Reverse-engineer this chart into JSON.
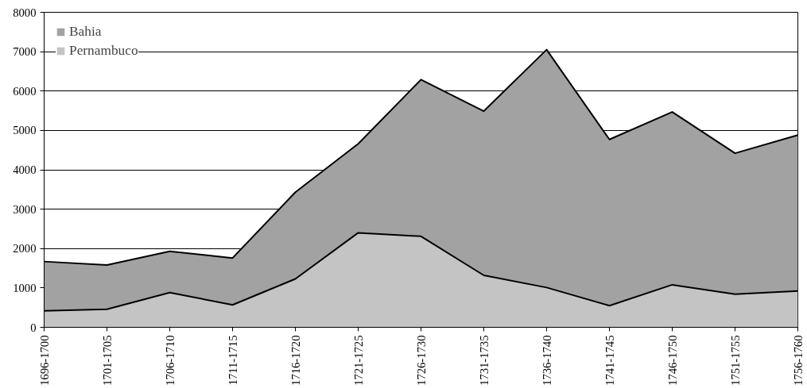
{
  "chart_data": {
    "type": "area",
    "stacked": true,
    "categories": [
      "1696-1700",
      "1701-1705",
      "1706-1710",
      "1711-1715",
      "1716-1720",
      "1721-1725",
      "1726-1730",
      "1731-1735",
      "1736-1740",
      "1741-1745",
      "1746-1750",
      "1751-1755",
      "1756-1760"
    ],
    "series": [
      {
        "name": "Pernambuco",
        "color": "#c4c4c4",
        "values": [
          420,
          460,
          880,
          570,
          1230,
          2400,
          2310,
          1320,
          1010,
          550,
          1080,
          840,
          920
        ]
      },
      {
        "name": "Bahia",
        "color": "#a2a2a2",
        "values": [
          1250,
          1120,
          1050,
          1190,
          2200,
          2260,
          3980,
          4170,
          6040,
          4220,
          4390,
          3580,
          3960
        ]
      }
    ],
    "ylim": [
      0,
      8000
    ],
    "yticks": [
      0,
      1000,
      2000,
      3000,
      4000,
      5000,
      6000,
      7000,
      8000
    ],
    "grid": "y",
    "legend": "top left"
  }
}
